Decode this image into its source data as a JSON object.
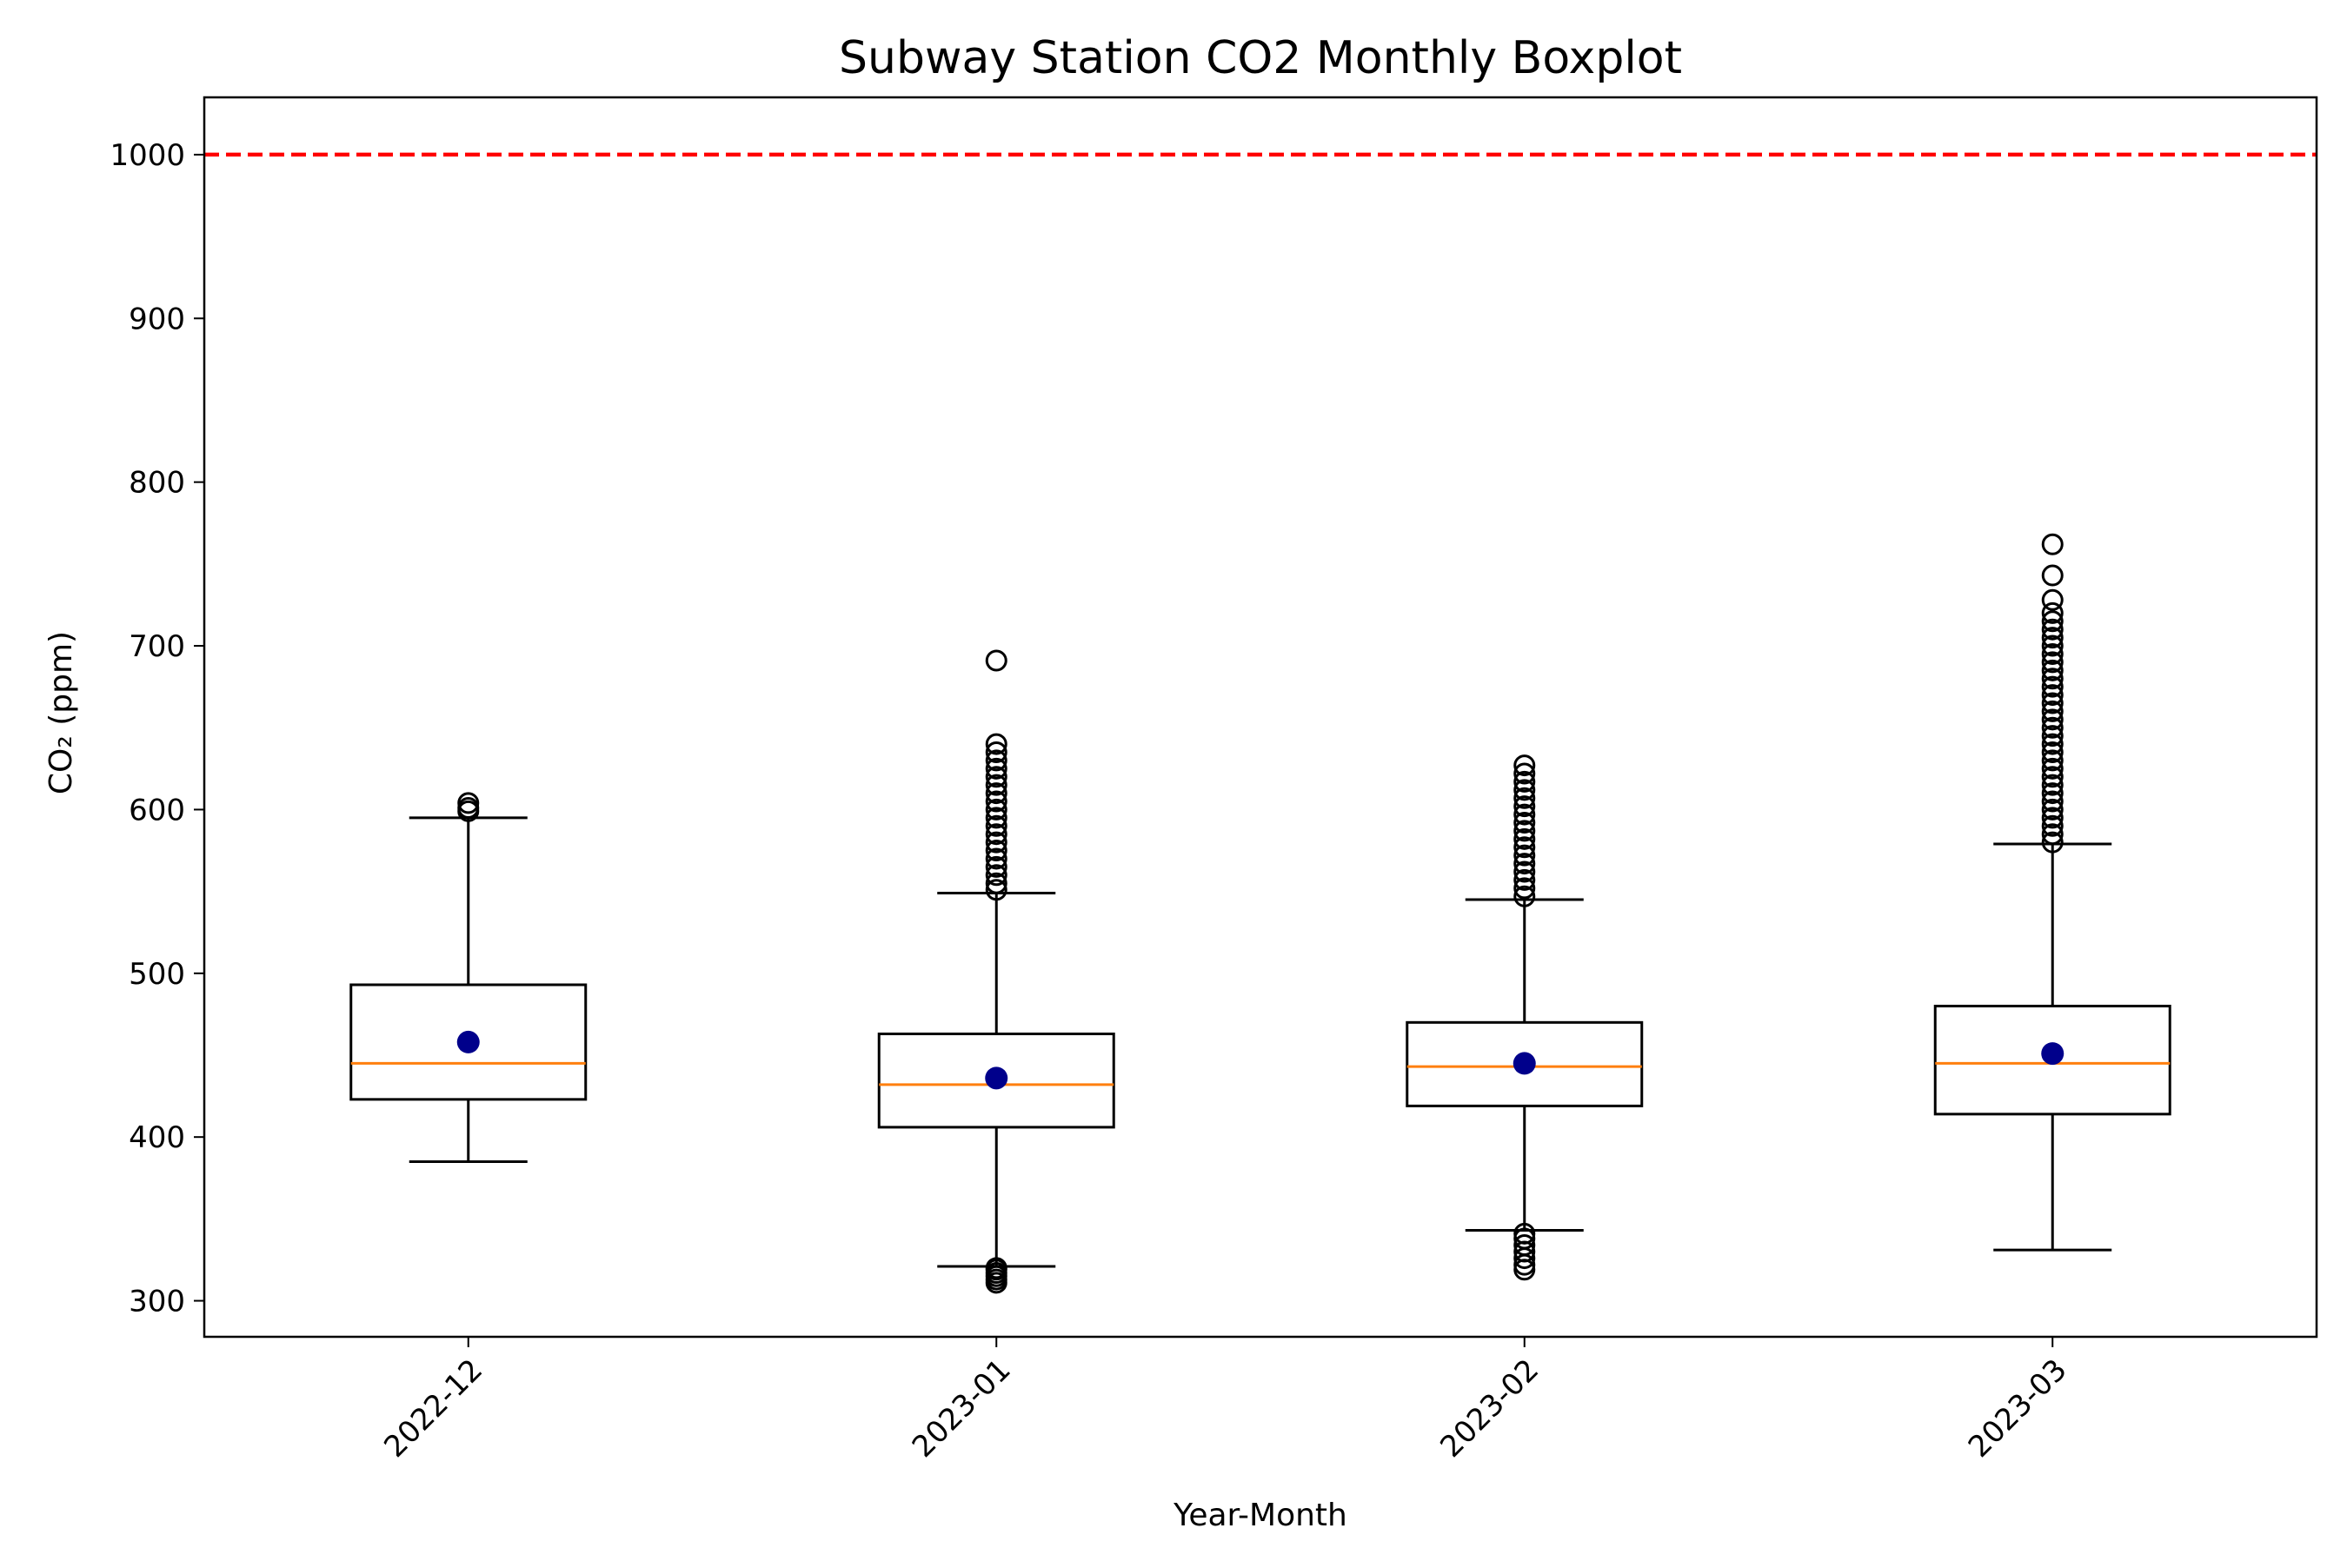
{
  "chart_data": {
    "type": "box",
    "title": "Subway Station CO2 Monthly Boxplot",
    "xlabel": "Year-Month",
    "ylabel": "CO₂ (ppm)",
    "ylim": [
      278,
      1035
    ],
    "yticks": [
      300,
      400,
      500,
      600,
      700,
      800,
      900,
      1000
    ],
    "categories": [
      "2022-12",
      "2023-01",
      "2023-02",
      "2023-03"
    ],
    "boxes": [
      {
        "category": "2022-12",
        "whisker_low": 385,
        "q1": 423,
        "median": 445,
        "q3": 493,
        "whisker_high": 595,
        "mean": 458,
        "outliers": [
          599,
          601,
          604
        ]
      },
      {
        "category": "2023-01",
        "whisker_low": 321,
        "q1": 406,
        "median": 432,
        "q3": 463,
        "whisker_high": 549,
        "mean": 436,
        "outliers": [
          311,
          313,
          315,
          317,
          319,
          320,
          551,
          555,
          560,
          565,
          570,
          575,
          580,
          585,
          590,
          595,
          600,
          605,
          610,
          615,
          620,
          625,
          630,
          635,
          640,
          691
        ]
      },
      {
        "category": "2023-02",
        "whisker_low": 343,
        "q1": 419,
        "median": 443,
        "q3": 470,
        "whisker_high": 545,
        "mean": 445,
        "outliers": [
          319,
          322,
          326,
          330,
          334,
          338,
          341,
          547,
          552,
          557,
          562,
          567,
          572,
          577,
          582,
          587,
          592,
          597,
          602,
          607,
          612,
          617,
          622,
          627
        ]
      },
      {
        "category": "2023-03",
        "whisker_low": 331,
        "q1": 414,
        "median": 445,
        "q3": 480,
        "whisker_high": 579,
        "mean": 451,
        "outliers": [
          580,
          585,
          590,
          595,
          600,
          605,
          610,
          615,
          620,
          625,
          630,
          635,
          640,
          645,
          650,
          655,
          660,
          665,
          670,
          675,
          680,
          685,
          690,
          695,
          700,
          705,
          710,
          715,
          720,
          728,
          743,
          762
        ]
      }
    ],
    "reference_line": {
      "value": 1000,
      "color": "#ff0000",
      "style": "dashed"
    },
    "colors": {
      "median": "#ff7f0e",
      "mean": "#00008b",
      "box": "#000000"
    },
    "grid": false,
    "legend": "none"
  }
}
